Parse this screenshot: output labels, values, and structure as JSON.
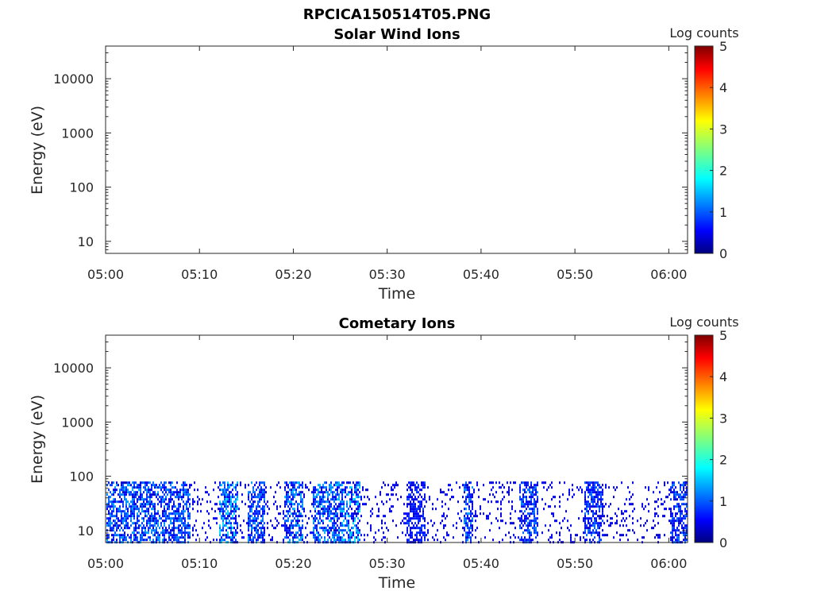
{
  "figure": {
    "title": "RPCICA150514T05.PNG"
  },
  "chart_data": [
    {
      "type": "heatmap",
      "title": "Solar Wind Ions",
      "xlabel": "Time",
      "ylabel": "Energy (eV)",
      "x_ticks": [
        "05:00",
        "05:10",
        "05:20",
        "05:30",
        "05:40",
        "05:50",
        "06:00"
      ],
      "xlim": [
        "05:00",
        "06:02"
      ],
      "y_scale": "log",
      "y_ticks": [
        "10",
        "100",
        "1000",
        "10000"
      ],
      "ylim": [
        6,
        40000
      ],
      "colorbar": {
        "label": "Log counts",
        "ticks": [
          "0",
          "1",
          "2",
          "3",
          "4",
          "5"
        ],
        "range": [
          0,
          5
        ],
        "colormap": "jet"
      },
      "data_summary": "empty panel, no counts recorded"
    },
    {
      "type": "heatmap",
      "title": "Cometary Ions",
      "xlabel": "Time",
      "ylabel": "Energy (eV)",
      "x_ticks": [
        "05:00",
        "05:10",
        "05:20",
        "05:30",
        "05:40",
        "05:50",
        "06:00"
      ],
      "xlim": [
        "05:00",
        "06:02"
      ],
      "y_scale": "log",
      "y_ticks": [
        "10",
        "100",
        "1000",
        "10000"
      ],
      "ylim": [
        6,
        40000
      ],
      "colorbar": {
        "label": "Log counts",
        "ticks": [
          "0",
          "1",
          "2",
          "3",
          "4",
          "5"
        ],
        "range": [
          0,
          5
        ],
        "colormap": "jet"
      },
      "energy_range_with_counts_eV": [
        6,
        80
      ],
      "intensity_range_log_counts": [
        0.3,
        1.8
      ],
      "active_intervals": [
        {
          "start": "05:00",
          "end": "05:06",
          "peak": 1.5
        },
        {
          "start": "05:06",
          "end": "05:09",
          "peak": 1.4
        },
        {
          "start": "05:12",
          "end": "05:14",
          "peak": 1.8
        },
        {
          "start": "05:15",
          "end": "05:17",
          "peak": 1.4
        },
        {
          "start": "05:19",
          "end": "05:21",
          "peak": 1.6
        },
        {
          "start": "05:22",
          "end": "05:25",
          "peak": 1.6
        },
        {
          "start": "05:25",
          "end": "05:27",
          "peak": 1.8
        },
        {
          "start": "05:32",
          "end": "05:34",
          "peak": 1.0
        },
        {
          "start": "05:38",
          "end": "05:39",
          "peak": 1.4
        },
        {
          "start": "05:44",
          "end": "05:46",
          "peak": 1.3
        },
        {
          "start": "05:51",
          "end": "05:53",
          "peak": 1.2
        },
        {
          "start": "06:00",
          "end": "06:02",
          "peak": 1.2
        }
      ]
    }
  ]
}
